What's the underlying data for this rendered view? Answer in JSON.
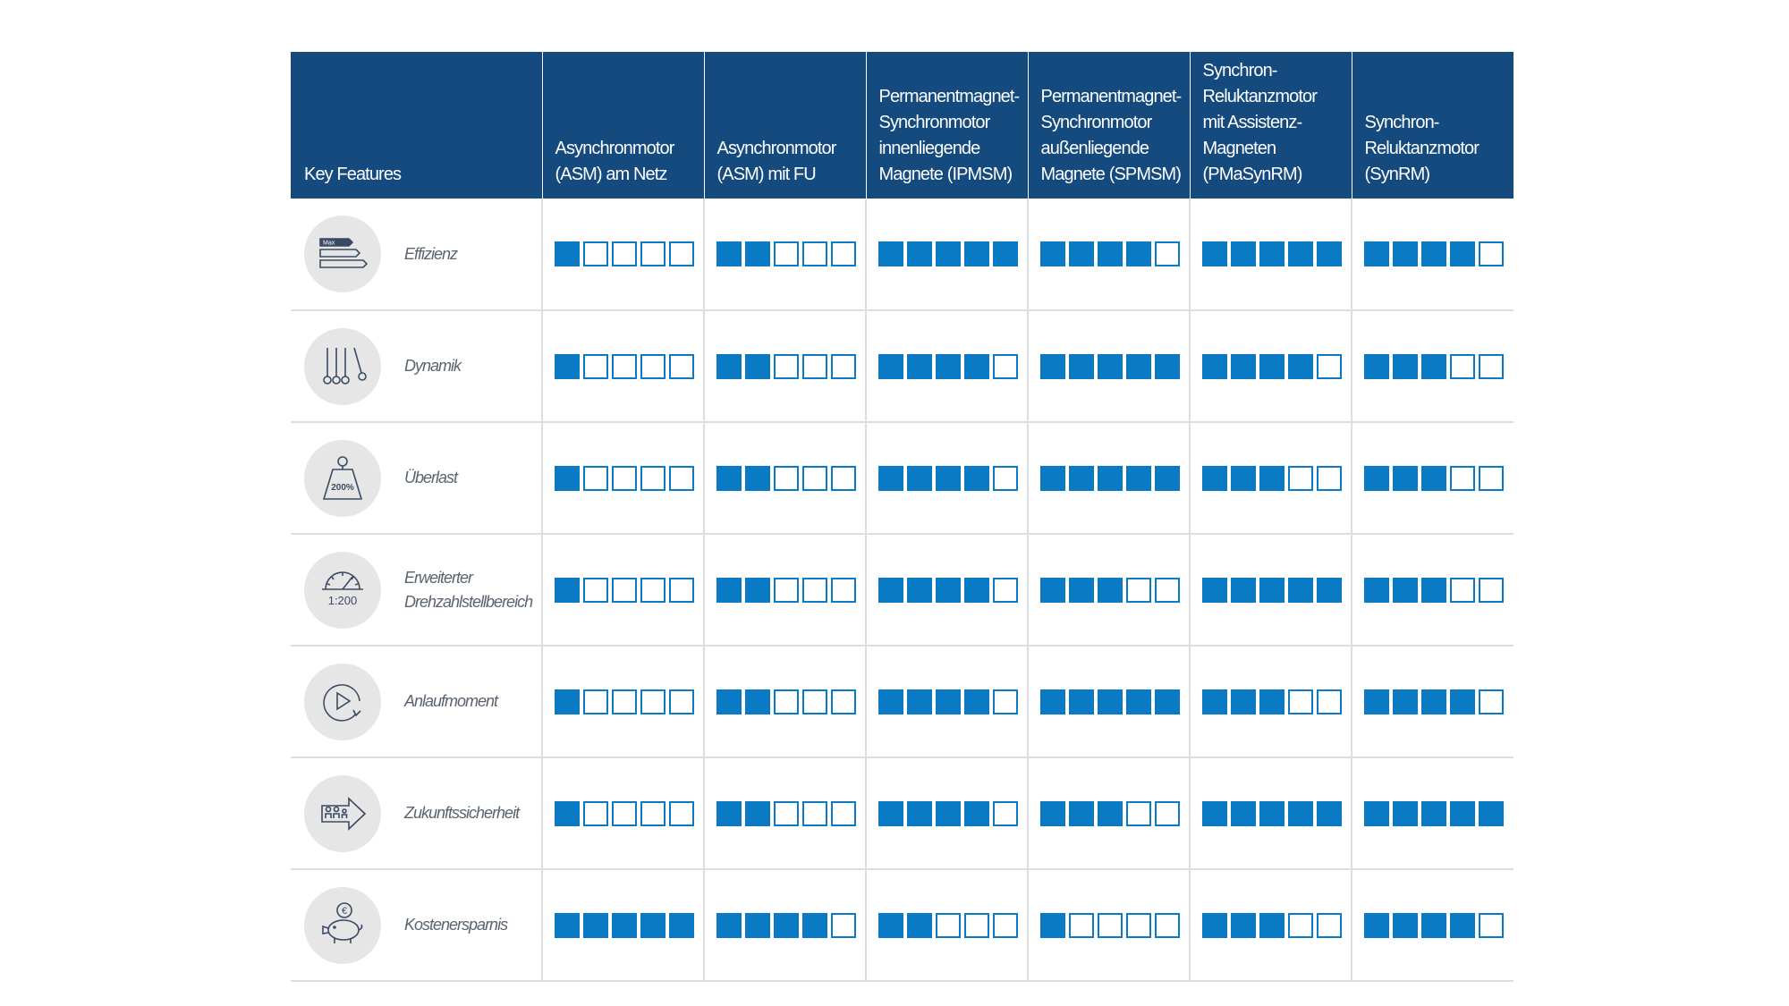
{
  "colors": {
    "header_bg": "#154a7f",
    "header_text": "#ffffff",
    "filled_square": "#0a7ac4",
    "empty_square_border": "#0a7ac4",
    "row_divider": "#dcdfe2",
    "icon_circle": "#e6e6e6",
    "feature_label": "#5a6470",
    "icon_stroke": "#3b4a63"
  },
  "chart_data": {
    "type": "table",
    "max_rating": 5,
    "columns": [
      "Key Features",
      "Asynchronmotor\n(ASM) am Netz",
      "Asynchronmotor\n(ASM) mit FU",
      "Permanentmagnet-\nSynchronmotor\ninnenliegende\nMagnete (IPMSM)",
      "Permanentmagnet-\nSynchronmotor\naußenliegende\nMagnete (SPMSM)",
      "Synchron-\nReluktanzmotor\nmit Assistenz-\nMagneten\n(PMaSynRM)",
      "Synchron-\nReluktanzmotor\n(SynRM)"
    ],
    "rows": [
      {
        "feature": "Effizienz",
        "icon": "efficiency-label-icon",
        "icon_text": "Max",
        "ratings": [
          1,
          2,
          5,
          4,
          5,
          4
        ]
      },
      {
        "feature": "Dynamik",
        "icon": "newtons-cradle-icon",
        "icon_text": "",
        "ratings": [
          1,
          2,
          4,
          5,
          4,
          3
        ]
      },
      {
        "feature": "Überlast",
        "icon": "weight-icon",
        "icon_text": "200%",
        "ratings": [
          1,
          2,
          4,
          5,
          3,
          3
        ]
      },
      {
        "feature": "Erweiterter\nDrehzahlstellbereich",
        "icon": "speedometer-icon",
        "icon_text": "1:200",
        "ratings": [
          1,
          2,
          4,
          3,
          5,
          3
        ]
      },
      {
        "feature": "Anlaufmoment",
        "icon": "play-rotate-icon",
        "icon_text": "",
        "ratings": [
          1,
          2,
          4,
          5,
          3,
          4
        ]
      },
      {
        "feature": "Zukunftssicherheit",
        "icon": "future-arrow-icon",
        "icon_text": "",
        "ratings": [
          1,
          2,
          4,
          3,
          5,
          5
        ]
      },
      {
        "feature": "Kostenersparnis",
        "icon": "piggy-bank-icon",
        "icon_text": "€",
        "ratings": [
          5,
          4,
          2,
          1,
          3,
          4
        ]
      }
    ]
  }
}
